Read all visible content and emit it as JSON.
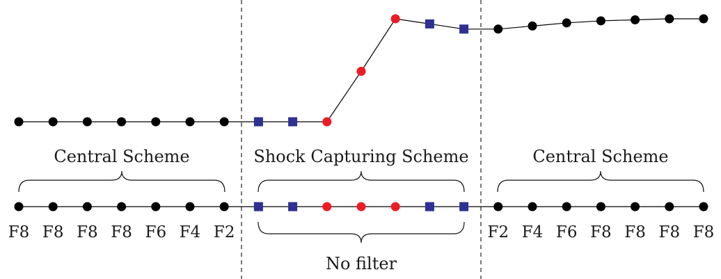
{
  "colors": {
    "central": "#000000",
    "shock_square": "#2e3192",
    "shock_circle": "#ed1c24",
    "line": "#000000",
    "divider": "#333333"
  },
  "regions": {
    "left": "Central Scheme",
    "middle": "Shock Capturing Scheme",
    "right": "Central Scheme"
  },
  "no_filter_label": "No filter",
  "points": [
    {
      "kind": "central",
      "level": 0,
      "filter": "F8"
    },
    {
      "kind": "central",
      "level": 0,
      "filter": "F8"
    },
    {
      "kind": "central",
      "level": 0,
      "filter": "F8"
    },
    {
      "kind": "central",
      "level": 0,
      "filter": "F8"
    },
    {
      "kind": "central",
      "level": 0,
      "filter": "F6"
    },
    {
      "kind": "central",
      "level": 0,
      "filter": "F4"
    },
    {
      "kind": "central",
      "level": 0,
      "filter": "F2"
    },
    {
      "kind": "square",
      "level": 0,
      "filter": ""
    },
    {
      "kind": "square",
      "level": 0,
      "filter": ""
    },
    {
      "kind": "circle",
      "level": 0,
      "filter": ""
    },
    {
      "kind": "circle",
      "level": 0.49,
      "filter": ""
    },
    {
      "kind": "circle",
      "level": 1.0,
      "filter": ""
    },
    {
      "kind": "square",
      "level": 0.95,
      "filter": ""
    },
    {
      "kind": "square",
      "level": 0.9,
      "filter": ""
    },
    {
      "kind": "central",
      "level": 0.9,
      "filter": "F2"
    },
    {
      "kind": "central",
      "level": 0.93,
      "filter": "F4"
    },
    {
      "kind": "central",
      "level": 0.96,
      "filter": "F6"
    },
    {
      "kind": "central",
      "level": 0.98,
      "filter": "F8"
    },
    {
      "kind": "central",
      "level": 0.99,
      "filter": "F8"
    },
    {
      "kind": "central",
      "level": 1.0,
      "filter": "F8"
    },
    {
      "kind": "central",
      "level": 1.0,
      "filter": "F8"
    }
  ]
}
